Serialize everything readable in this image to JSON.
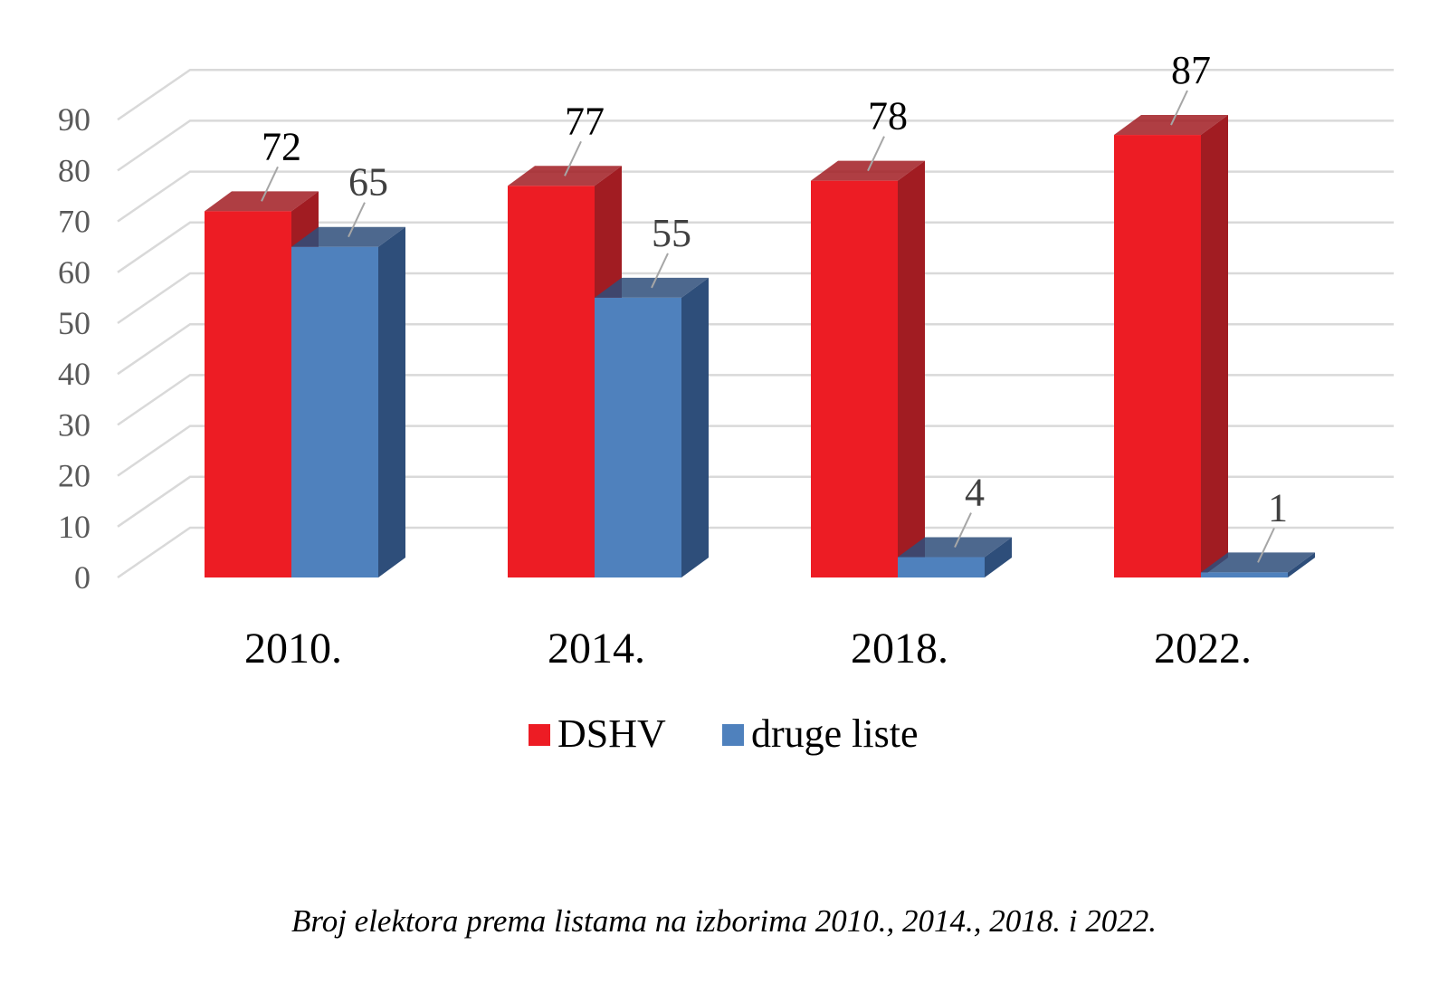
{
  "chart_data": {
    "type": "bar",
    "categories": [
      "2010.",
      "2014.",
      "2018.",
      "2022."
    ],
    "series": [
      {
        "name": "DSHV",
        "values": [
          72,
          77,
          78,
          87
        ],
        "color": "#ED1C24",
        "side_color": "#A11C22",
        "label_color": "#000000"
      },
      {
        "name": "druge liste",
        "values": [
          65,
          55,
          4,
          1
        ],
        "color": "#4F81BD",
        "side_color": "#2E4E7A",
        "label_color": "#404040"
      }
    ],
    "yticks": [
      0,
      10,
      20,
      30,
      40,
      50,
      60,
      70,
      80,
      90
    ],
    "ylim": [
      0,
      90
    ],
    "grid": true,
    "legend_position": "bottom",
    "style": "3d-clustered-column"
  },
  "caption": "Broj elektora prema listama na izborima 2010., 2014., 2018. i 2022."
}
